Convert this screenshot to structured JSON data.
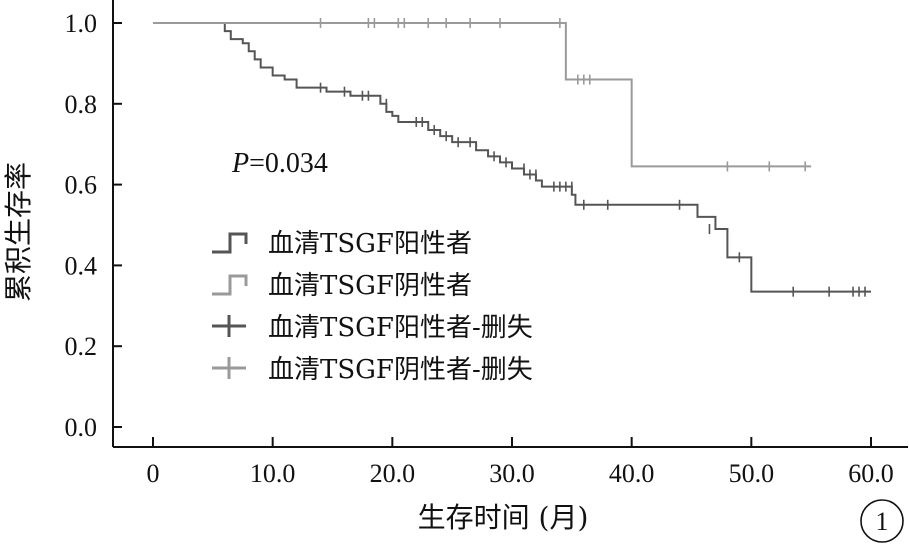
{
  "chart_data": {
    "type": "line",
    "xlabel": "生存时间 (月)",
    "ylabel": "累积生存率",
    "xlim": [
      0,
      60
    ],
    "ylim": [
      0,
      1.0
    ],
    "x_ticks": [
      "0",
      "10.0",
      "20.0",
      "30.0",
      "40.0",
      "50.0",
      "60.0"
    ],
    "y_ticks": [
      "0.0",
      "0.2",
      "0.4",
      "0.6",
      "0.8",
      "1.0"
    ],
    "annotation": {
      "p_label": "P",
      "p_value": "=0.034"
    },
    "panel_label": "1",
    "grid": false,
    "legend_position": "center-left",
    "legend": [
      "血清TSGF阳性者",
      "血清TSGF阴性者",
      "血清TSGF阳性者-删失",
      "血清TSGF阴性者-删失"
    ],
    "series": [
      {
        "name": "血清TSGF阳性者",
        "color": "#555555",
        "steps": [
          [
            0,
            1.0
          ],
          [
            6,
            0.98
          ],
          [
            6.5,
            0.96
          ],
          [
            7.5,
            0.95
          ],
          [
            8,
            0.93
          ],
          [
            8.5,
            0.91
          ],
          [
            9,
            0.89
          ],
          [
            10,
            0.87
          ],
          [
            11,
            0.86
          ],
          [
            12,
            0.84
          ],
          [
            14.5,
            0.83
          ],
          [
            16.5,
            0.82
          ],
          [
            19,
            0.8
          ],
          [
            19.5,
            0.78
          ],
          [
            20,
            0.77
          ],
          [
            20.5,
            0.755
          ],
          [
            23,
            0.735
          ],
          [
            24,
            0.72
          ],
          [
            25,
            0.705
          ],
          [
            27,
            0.685
          ],
          [
            28,
            0.67
          ],
          [
            29,
            0.655
          ],
          [
            30,
            0.64
          ],
          [
            31,
            0.625
          ],
          [
            32,
            0.61
          ],
          [
            32.5,
            0.595
          ],
          [
            35,
            0.575
          ],
          [
            35.3,
            0.55
          ],
          [
            45.5,
            0.52
          ],
          [
            47,
            0.49
          ],
          [
            48,
            0.42
          ],
          [
            50,
            0.335
          ],
          [
            60,
            0.335
          ]
        ],
        "censored": [
          [
            14,
            0.84
          ],
          [
            16,
            0.83
          ],
          [
            17.5,
            0.82
          ],
          [
            18,
            0.82
          ],
          [
            19.5,
            0.8
          ],
          [
            22,
            0.755
          ],
          [
            22.5,
            0.755
          ],
          [
            23.5,
            0.735
          ],
          [
            24.5,
            0.72
          ],
          [
            25.5,
            0.705
          ],
          [
            26.5,
            0.705
          ],
          [
            28.5,
            0.67
          ],
          [
            29.5,
            0.655
          ],
          [
            31,
            0.64
          ],
          [
            31.5,
            0.625
          ],
          [
            32,
            0.625
          ],
          [
            33.5,
            0.595
          ],
          [
            34,
            0.595
          ],
          [
            34.5,
            0.595
          ],
          [
            35,
            0.595
          ],
          [
            36,
            0.55
          ],
          [
            38,
            0.55
          ],
          [
            44,
            0.55
          ],
          [
            46.5,
            0.49
          ],
          [
            49,
            0.42
          ],
          [
            53.5,
            0.335
          ],
          [
            56.5,
            0.335
          ],
          [
            58.5,
            0.335
          ],
          [
            59,
            0.335
          ],
          [
            59.5,
            0.335
          ]
        ]
      },
      {
        "name": "血清TSGF阴性者",
        "color": "#9a9a9a",
        "steps": [
          [
            0,
            1.0
          ],
          [
            34.5,
            0.86
          ],
          [
            40,
            0.645
          ],
          [
            55,
            0.645
          ]
        ],
        "censored": [
          [
            14,
            1.0
          ],
          [
            18,
            1.0
          ],
          [
            18.5,
            1.0
          ],
          [
            20.5,
            1.0
          ],
          [
            21,
            1.0
          ],
          [
            23,
            1.0
          ],
          [
            24.5,
            1.0
          ],
          [
            26.5,
            1.0
          ],
          [
            29,
            1.0
          ],
          [
            34,
            1.0
          ],
          [
            35.5,
            0.86
          ],
          [
            36,
            0.86
          ],
          [
            36.5,
            0.86
          ],
          [
            48,
            0.645
          ],
          [
            51.5,
            0.645
          ],
          [
            54.5,
            0.645
          ]
        ]
      }
    ]
  }
}
